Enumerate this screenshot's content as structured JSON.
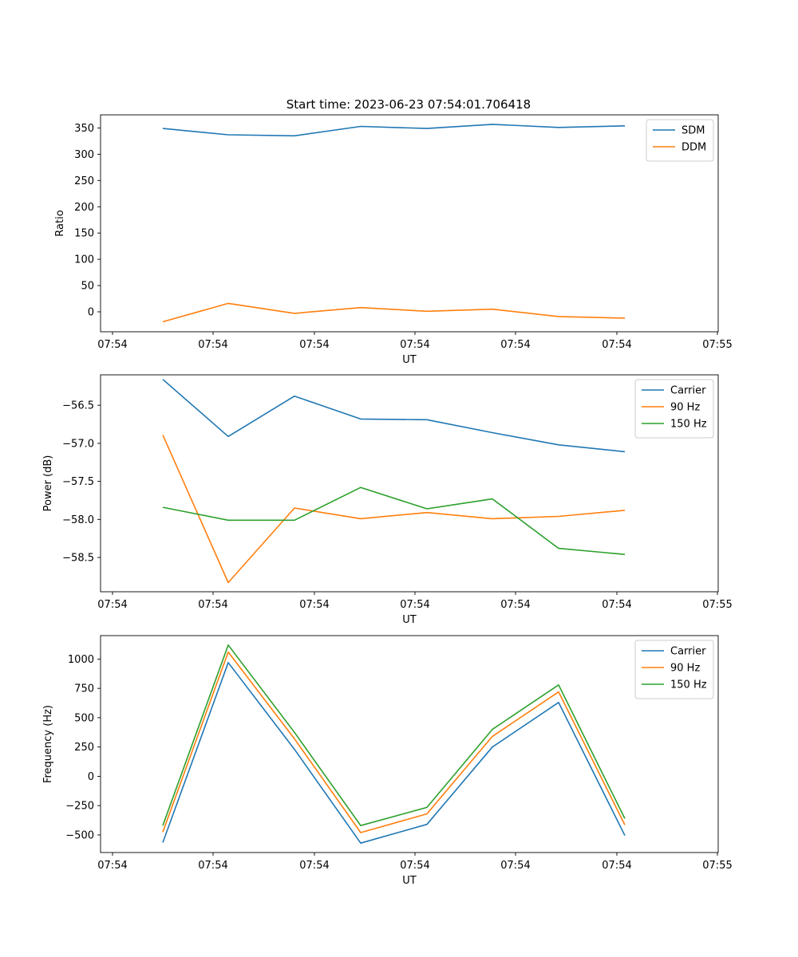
{
  "figure": {
    "title": "Start time: 2023-06-23 07:54:01.706418"
  },
  "chart_data": [
    {
      "type": "line",
      "xlabel": "UT",
      "ylabel": "Ratio",
      "x_tick_labels": [
        "07:54",
        "07:54",
        "07:54",
        "07:54",
        "07:54",
        "07:54",
        "07:55"
      ],
      "y_ticks": [
        0,
        50,
        100,
        150,
        200,
        250,
        300,
        350
      ],
      "ylim": [
        -38,
        375
      ],
      "legend": "top-right",
      "grid": false,
      "series": [
        {
          "name": "SDM",
          "color": "#1f77b4",
          "values": [
            349,
            337,
            335,
            353,
            349,
            357,
            351,
            354
          ]
        },
        {
          "name": "DDM",
          "color": "#ff7f0e",
          "values": [
            -19,
            16,
            -3,
            8,
            1,
            5,
            -9,
            -12
          ]
        }
      ]
    },
    {
      "type": "line",
      "xlabel": "UT",
      "ylabel": "Power (dB)",
      "x_tick_labels": [
        "07:54",
        "07:54",
        "07:54",
        "07:54",
        "07:54",
        "07:54",
        "07:55"
      ],
      "y_ticks": [
        -58.5,
        -58.0,
        -57.5,
        -57.0,
        -56.5
      ],
      "y_tick_labels": [
        "−58.5",
        "−58.0",
        "−57.5",
        "−57.0",
        "−56.5"
      ],
      "ylim": [
        -58.95,
        -56.1
      ],
      "legend": "top-right",
      "grid": false,
      "series": [
        {
          "name": "Carrier",
          "color": "#1f77b4",
          "values": [
            -56.16,
            -56.91,
            -56.38,
            -56.68,
            -56.69,
            -56.86,
            -57.02,
            -57.11
          ]
        },
        {
          "name": "90 Hz",
          "color": "#ff7f0e",
          "values": [
            -56.89,
            -58.83,
            -57.85,
            -57.99,
            -57.91,
            -57.99,
            -57.96,
            -57.88
          ]
        },
        {
          "name": "150 Hz",
          "color": "#2ca02c",
          "values": [
            -57.84,
            -58.01,
            -58.01,
            -57.58,
            -57.86,
            -57.73,
            -58.38,
            -58.46
          ]
        }
      ]
    },
    {
      "type": "line",
      "xlabel": "UT",
      "ylabel": "Frequency (Hz)",
      "x_tick_labels": [
        "07:54",
        "07:54",
        "07:54",
        "07:54",
        "07:54",
        "07:54",
        "07:55"
      ],
      "y_ticks": [
        -500,
        -250,
        0,
        250,
        500,
        750,
        1000
      ],
      "y_tick_labels": [
        "−500",
        "−250",
        "0",
        "250",
        "500",
        "750",
        "1000"
      ],
      "ylim": [
        -650,
        1200
      ],
      "legend": "top-right",
      "grid": false,
      "series": [
        {
          "name": "Carrier",
          "color": "#1f77b4",
          "values": [
            -565,
            970,
            230,
            -570,
            -410,
            250,
            630,
            -505
          ]
        },
        {
          "name": "90 Hz",
          "color": "#ff7f0e",
          "values": [
            -475,
            1060,
            320,
            -480,
            -320,
            340,
            720,
            -415
          ]
        },
        {
          "name": "150 Hz",
          "color": "#2ca02c",
          "values": [
            -420,
            1120,
            375,
            -420,
            -265,
            400,
            780,
            -360
          ]
        }
      ]
    }
  ]
}
